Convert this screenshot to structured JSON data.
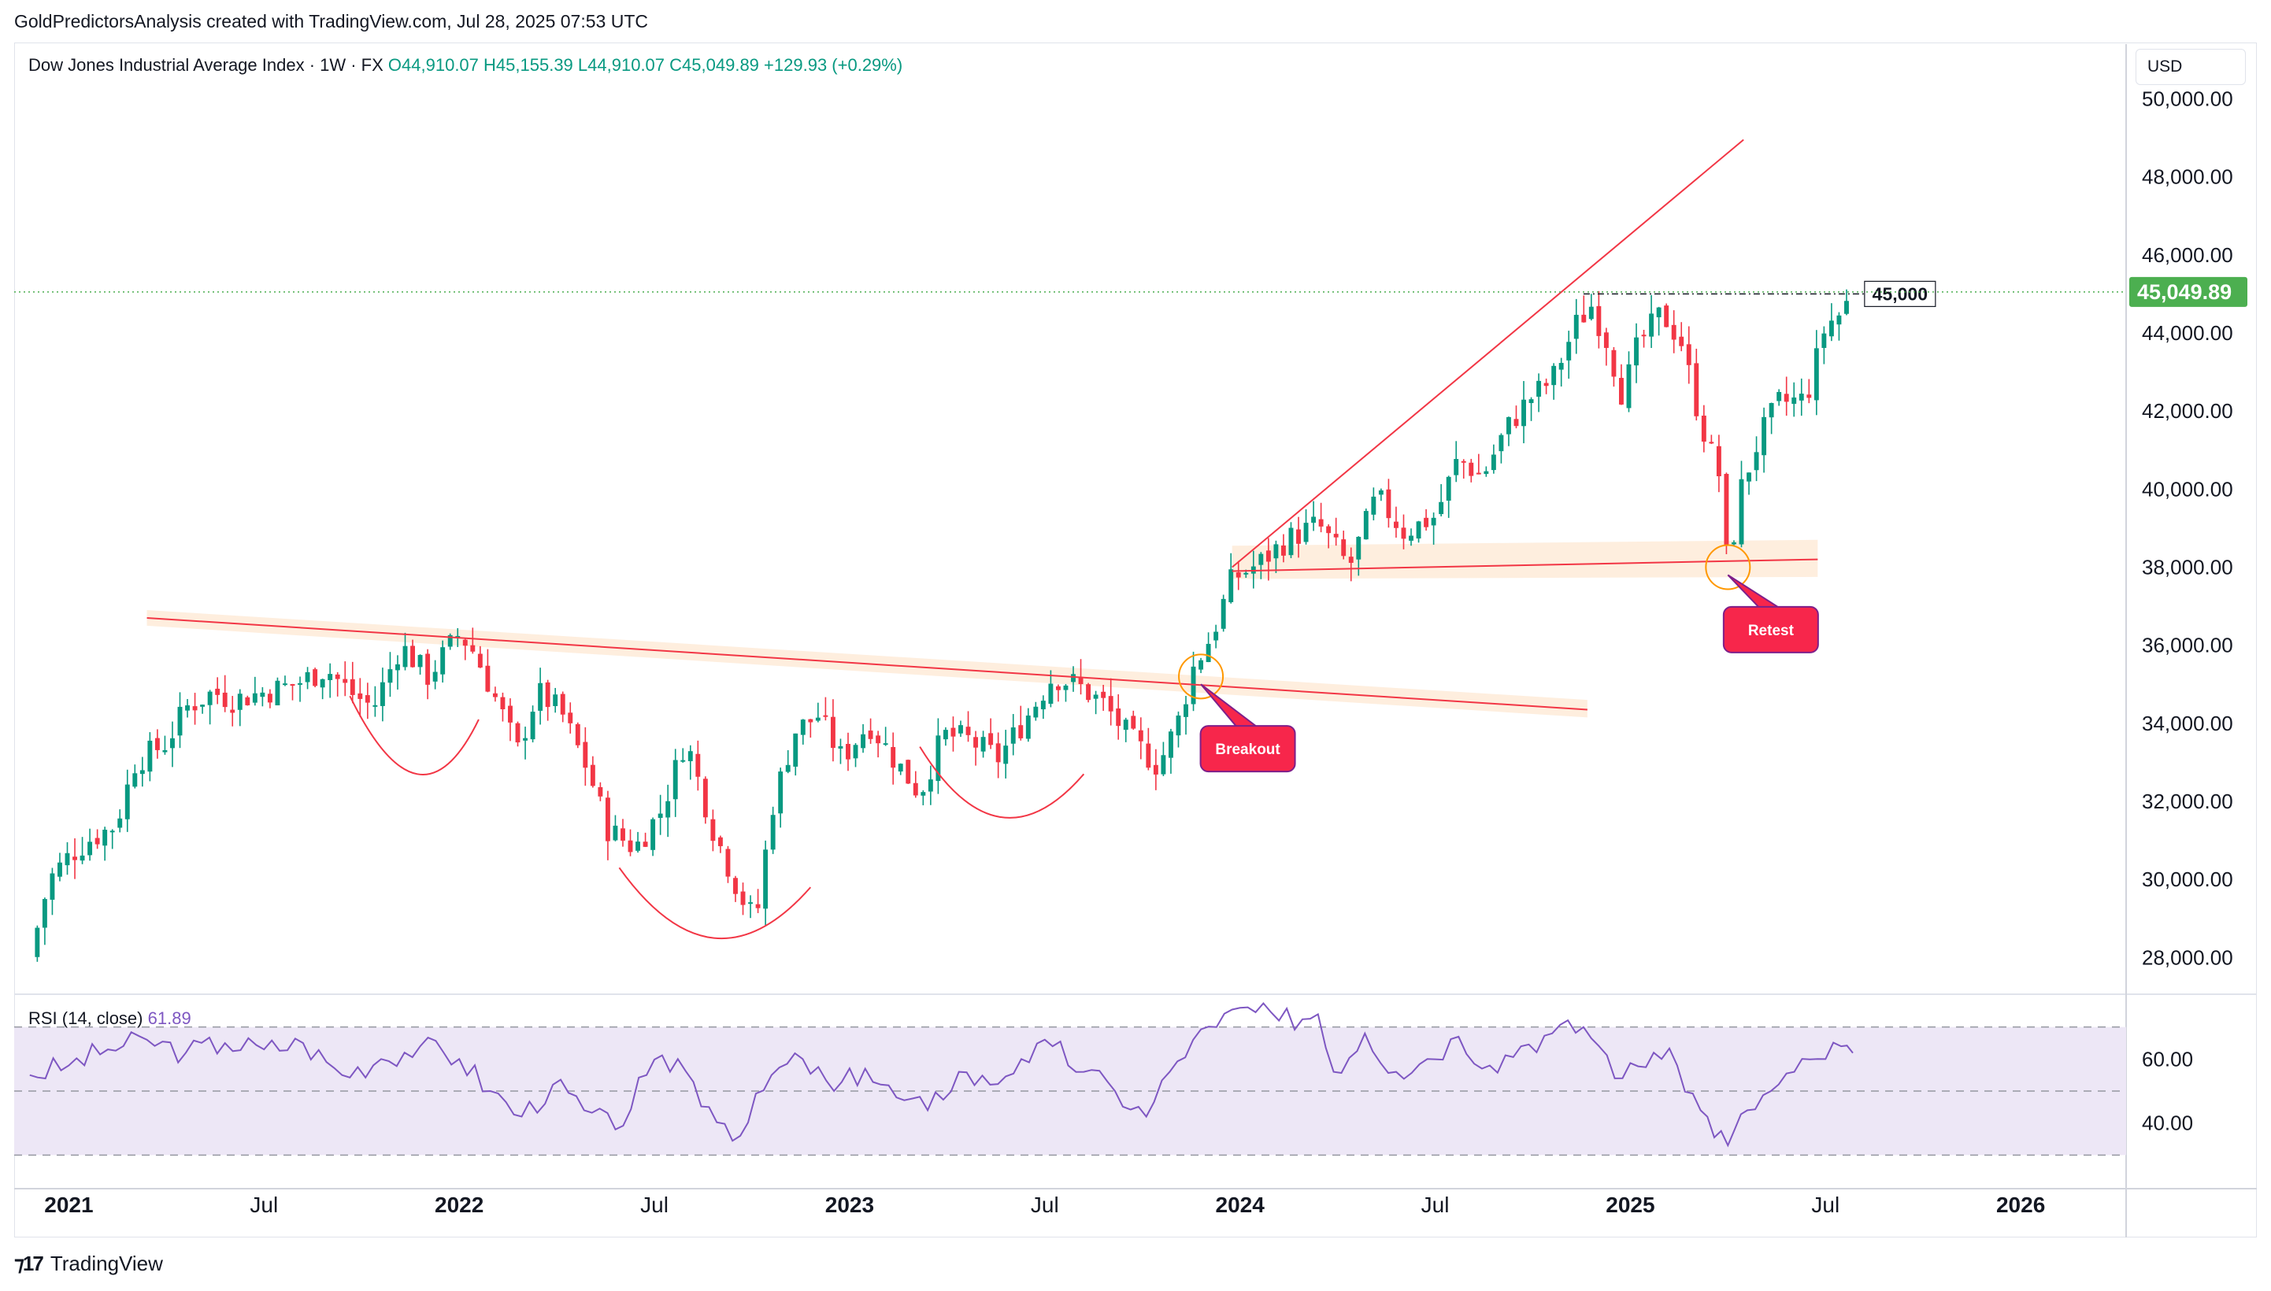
{
  "caption": "GoldPredictorsAnalysis created with TradingView.com, Jul 28, 2025 07:53 UTC",
  "legend": {
    "symbol": "Dow Jones Industrial Average Index · 1W · FX",
    "open": "O44,910.07",
    "high": "H45,155.39",
    "low": "L44,910.07",
    "close": "C45,049.89",
    "change": "+129.93 (+0.29%)"
  },
  "currency": "USD",
  "rsi_legend": {
    "name": "RSI (14, close)",
    "value": "61.89"
  },
  "footer_brand": "TradingView",
  "colors": {
    "up": "#089981",
    "down": "#f23645",
    "trend": "#f23645",
    "zone": "#fde7d0",
    "rsi": "#7e57c2",
    "rsi_band": "#ede7f6",
    "last_price": "#4caf50",
    "circle": "#ff9800"
  },
  "chart_data": {
    "type": "candlestick",
    "interval": "1W",
    "y_ticks": [
      "50,000.00",
      "48,000.00",
      "46,000.00",
      "44,000.00",
      "42,000.00",
      "40,000.00",
      "38,000.00",
      "36,000.00",
      "34,000.00",
      "32,000.00",
      "30,000.00",
      "28,000.00"
    ],
    "x_ticks": [
      {
        "label": "2021",
        "bold": true
      },
      {
        "label": "Jul",
        "bold": false
      },
      {
        "label": "2022",
        "bold": true
      },
      {
        "label": "Jul",
        "bold": false
      },
      {
        "label": "2023",
        "bold": true
      },
      {
        "label": "Jul",
        "bold": false
      },
      {
        "label": "2024",
        "bold": true
      },
      {
        "label": "Jul",
        "bold": false
      },
      {
        "label": "2025",
        "bold": true
      },
      {
        "label": "Jul",
        "bold": false
      },
      {
        "label": "2026",
        "bold": true
      }
    ],
    "last_price": "45,049.89",
    "level_label": "45,000",
    "annotations": [
      "Breakout",
      "Retest"
    ],
    "rsi_ticks": [
      "60.00",
      "40.00"
    ],
    "rsi_current": 61.89,
    "close_path": [
      [
        2020.9,
        28000
      ],
      [
        2020.95,
        30000
      ],
      [
        2021.0,
        30600
      ],
      [
        2021.05,
        31000
      ],
      [
        2021.12,
        31400
      ],
      [
        2021.17,
        33000
      ],
      [
        2021.25,
        33500
      ],
      [
        2021.3,
        34400
      ],
      [
        2021.37,
        34800
      ],
      [
        2021.42,
        34600
      ],
      [
        2021.5,
        34800
      ],
      [
        2021.58,
        35000
      ],
      [
        2021.66,
        35400
      ],
      [
        2021.72,
        34800
      ],
      [
        2021.78,
        34400
      ],
      [
        2021.85,
        36000
      ],
      [
        2021.92,
        35200
      ],
      [
        2022.0,
        36300
      ],
      [
        2022.04,
        35800
      ],
      [
        2022.09,
        34700
      ],
      [
        2022.15,
        33300
      ],
      [
        2022.2,
        34800
      ],
      [
        2022.26,
        34300
      ],
      [
        2022.33,
        32800
      ],
      [
        2022.38,
        31300
      ],
      [
        2022.45,
        30800
      ],
      [
        2022.52,
        31800
      ],
      [
        2022.58,
        33600
      ],
      [
        2022.65,
        31300
      ],
      [
        2022.72,
        29600
      ],
      [
        2022.76,
        28900
      ],
      [
        2022.8,
        31800
      ],
      [
        2022.86,
        33800
      ],
      [
        2022.92,
        34200
      ],
      [
        2022.98,
        33100
      ],
      [
        2023.05,
        34000
      ],
      [
        2023.12,
        33000
      ],
      [
        2023.18,
        32200
      ],
      [
        2023.24,
        33700
      ],
      [
        2023.3,
        33600
      ],
      [
        2023.38,
        33100
      ],
      [
        2023.45,
        34100
      ],
      [
        2023.52,
        35200
      ],
      [
        2023.58,
        35000
      ],
      [
        2023.65,
        34500
      ],
      [
        2023.72,
        33600
      ],
      [
        2023.79,
        32900
      ],
      [
        2023.84,
        34000
      ],
      [
        2023.88,
        35400
      ],
      [
        2023.93,
        36300
      ],
      [
        2023.98,
        37700
      ],
      [
        2024.05,
        38100
      ],
      [
        2024.12,
        38700
      ],
      [
        2024.2,
        39100
      ],
      [
        2024.28,
        38000
      ],
      [
        2024.35,
        39800
      ],
      [
        2024.42,
        38900
      ],
      [
        2024.5,
        39300
      ],
      [
        2024.56,
        40800
      ],
      [
        2024.62,
        40300
      ],
      [
        2024.68,
        41500
      ],
      [
        2024.74,
        42300
      ],
      [
        2024.8,
        42800
      ],
      [
        2024.86,
        44200
      ],
      [
        2024.9,
        44700
      ],
      [
        2024.94,
        43800
      ],
      [
        2024.98,
        42400
      ],
      [
        2025.02,
        43700
      ],
      [
        2025.08,
        44500
      ],
      [
        2025.13,
        43800
      ],
      [
        2025.18,
        41700
      ],
      [
        2025.23,
        40300
      ],
      [
        2025.25,
        37800
      ],
      [
        2025.28,
        39900
      ],
      [
        2025.33,
        41300
      ],
      [
        2025.38,
        42200
      ],
      [
        2025.45,
        42300
      ],
      [
        2025.5,
        44200
      ],
      [
        2025.54,
        44500
      ],
      [
        2025.57,
        45050
      ]
    ],
    "rsi_path": [
      [
        2020.9,
        55
      ],
      [
        2021.0,
        58
      ],
      [
        2021.1,
        63
      ],
      [
        2021.2,
        66
      ],
      [
        2021.3,
        62
      ],
      [
        2021.4,
        65
      ],
      [
        2021.5,
        63
      ],
      [
        2021.6,
        65
      ],
      [
        2021.7,
        55
      ],
      [
        2021.8,
        60
      ],
      [
        2021.9,
        64
      ],
      [
        2022.0,
        60
      ],
      [
        2022.08,
        50
      ],
      [
        2022.16,
        42
      ],
      [
        2022.24,
        52
      ],
      [
        2022.32,
        44
      ],
      [
        2022.4,
        38
      ],
      [
        2022.48,
        55
      ],
      [
        2022.56,
        60
      ],
      [
        2022.64,
        45
      ],
      [
        2022.72,
        36
      ],
      [
        2022.8,
        55
      ],
      [
        2022.88,
        60
      ],
      [
        2022.96,
        50
      ],
      [
        2023.04,
        57
      ],
      [
        2023.12,
        48
      ],
      [
        2023.2,
        44
      ],
      [
        2023.28,
        56
      ],
      [
        2023.36,
        52
      ],
      [
        2023.44,
        60
      ],
      [
        2023.52,
        64
      ],
      [
        2023.6,
        56
      ],
      [
        2023.68,
        50
      ],
      [
        2023.76,
        42
      ],
      [
        2023.82,
        56
      ],
      [
        2023.88,
        66
      ],
      [
        2023.94,
        70
      ],
      [
        2024.0,
        76
      ],
      [
        2024.1,
        72
      ],
      [
        2024.2,
        74
      ],
      [
        2024.24,
        56
      ],
      [
        2024.32,
        68
      ],
      [
        2024.4,
        56
      ],
      [
        2024.48,
        60
      ],
      [
        2024.56,
        67
      ],
      [
        2024.64,
        58
      ],
      [
        2024.72,
        64
      ],
      [
        2024.8,
        68
      ],
      [
        2024.88,
        70
      ],
      [
        2024.92,
        64
      ],
      [
        2024.98,
        54
      ],
      [
        2025.06,
        62
      ],
      [
        2025.12,
        58
      ],
      [
        2025.18,
        44
      ],
      [
        2025.25,
        33
      ],
      [
        2025.3,
        44
      ],
      [
        2025.36,
        50
      ],
      [
        2025.42,
        56
      ],
      [
        2025.48,
        60
      ],
      [
        2025.54,
        64
      ],
      [
        2025.57,
        61.89
      ]
    ]
  }
}
